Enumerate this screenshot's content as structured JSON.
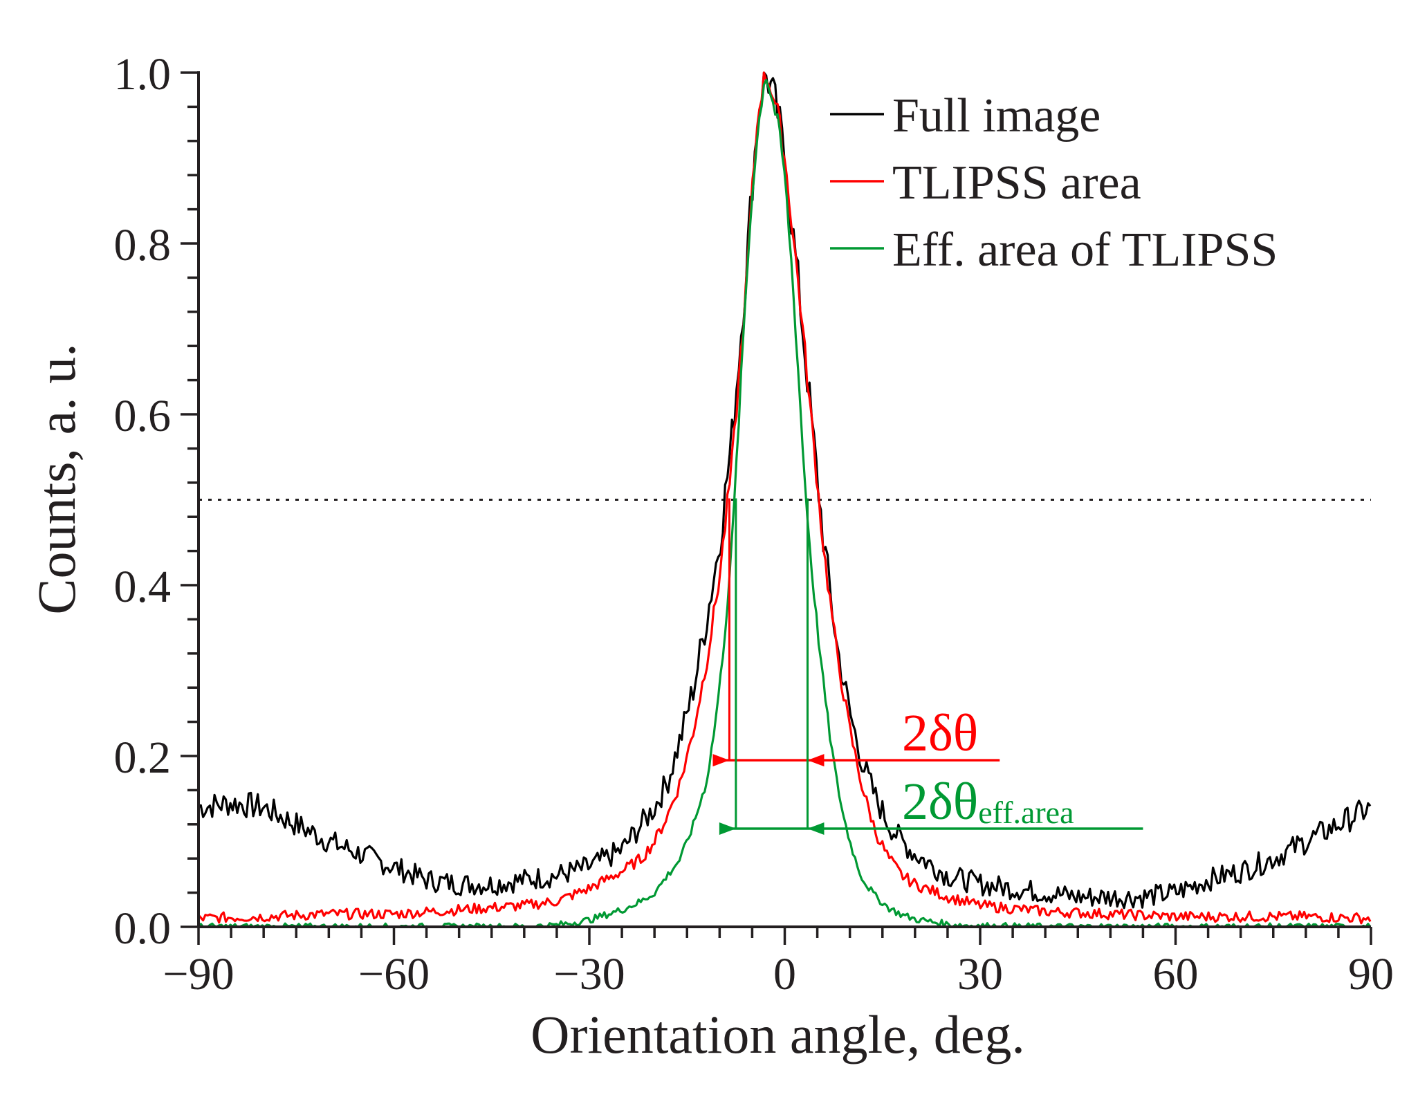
{
  "chart_data": {
    "type": "line",
    "xlabel": "Orientation angle, deg.",
    "ylabel": "Counts, a. u.",
    "xlim": [
      -90,
      90
    ],
    "ylim": [
      0,
      1.0
    ],
    "xticks": [
      -90,
      -60,
      -30,
      0,
      30,
      60,
      90
    ],
    "xtick_labels": [
      "−90",
      "−60",
      "−30",
      "0",
      "30",
      "60",
      "90"
    ],
    "yticks": [
      0.0,
      0.2,
      0.4,
      0.6,
      0.8,
      1.0
    ],
    "ytick_labels": [
      "0.0",
      "0.2",
      "0.4",
      "0.6",
      "0.8",
      "1.0"
    ],
    "legend_position": "top-right",
    "series": [
      {
        "name": "Full image",
        "color": "#000000",
        "x": [
          -90,
          -85,
          -80,
          -75,
          -70,
          -65,
          -60,
          -55,
          -50,
          -45,
          -40,
          -35,
          -30,
          -25,
          -22,
          -20,
          -18,
          -16,
          -14,
          -12,
          -10,
          -8,
          -6,
          -5,
          -4,
          -3,
          -2,
          -1,
          0,
          2,
          4,
          6,
          8,
          10,
          12,
          14,
          16,
          18,
          20,
          25,
          30,
          35,
          40,
          45,
          50,
          55,
          60,
          65,
          70,
          75,
          80,
          85,
          90
        ],
        "y": [
          0.14,
          0.145,
          0.14,
          0.12,
          0.1,
          0.085,
          0.07,
          0.055,
          0.05,
          0.05,
          0.055,
          0.06,
          0.07,
          0.09,
          0.12,
          0.14,
          0.17,
          0.22,
          0.28,
          0.36,
          0.45,
          0.58,
          0.76,
          0.87,
          0.96,
          1.0,
          0.98,
          0.95,
          0.9,
          0.76,
          0.6,
          0.45,
          0.33,
          0.25,
          0.19,
          0.15,
          0.12,
          0.1,
          0.085,
          0.06,
          0.05,
          0.045,
          0.04,
          0.035,
          0.035,
          0.035,
          0.04,
          0.055,
          0.065,
          0.08,
          0.1,
          0.12,
          0.14
        ]
      },
      {
        "name": "TLIPSS area",
        "color": "#ff0000",
        "x": [
          -90,
          -80,
          -70,
          -60,
          -50,
          -40,
          -35,
          -30,
          -25,
          -22,
          -20,
          -18,
          -16,
          -14,
          -12,
          -10,
          -8,
          -6,
          -5,
          -4,
          -3,
          -2,
          -1,
          0,
          2,
          4,
          6,
          8,
          10,
          12,
          14,
          16,
          18,
          20,
          25,
          30,
          40,
          50,
          60,
          70,
          80,
          90
        ],
        "y": [
          0.01,
          0.012,
          0.015,
          0.015,
          0.02,
          0.025,
          0.03,
          0.045,
          0.065,
          0.08,
          0.1,
          0.13,
          0.17,
          0.23,
          0.31,
          0.41,
          0.55,
          0.74,
          0.86,
          0.96,
          1.0,
          0.98,
          0.95,
          0.9,
          0.76,
          0.6,
          0.44,
          0.32,
          0.23,
          0.16,
          0.11,
          0.08,
          0.06,
          0.05,
          0.035,
          0.025,
          0.018,
          0.015,
          0.012,
          0.012,
          0.012,
          0.01
        ]
      },
      {
        "name": "Eff. area of TLIPSS",
        "color": "#009933",
        "x": [
          -90,
          -60,
          -40,
          -35,
          -30,
          -25,
          -22,
          -20,
          -18,
          -16,
          -14,
          -12,
          -11,
          -10,
          -9,
          -8,
          -7,
          -6,
          -5,
          -4,
          -3,
          -2,
          -1,
          0,
          1,
          2,
          3,
          4,
          5,
          6,
          7,
          8,
          9,
          10,
          11,
          12,
          14,
          16,
          18,
          20,
          25,
          30,
          40,
          60,
          90
        ],
        "y": [
          0.0,
          0.0,
          0.0,
          0.002,
          0.008,
          0.02,
          0.03,
          0.04,
          0.06,
          0.08,
          0.12,
          0.17,
          0.22,
          0.28,
          0.36,
          0.46,
          0.6,
          0.74,
          0.86,
          0.94,
          1.0,
          0.97,
          0.94,
          0.88,
          0.78,
          0.66,
          0.53,
          0.43,
          0.35,
          0.28,
          0.22,
          0.17,
          0.13,
          0.1,
          0.075,
          0.055,
          0.035,
          0.022,
          0.014,
          0.009,
          0.003,
          0.001,
          0.0,
          0.0,
          0.0
        ]
      }
    ],
    "reference_line": {
      "y": 0.5,
      "style": "dotted"
    },
    "annotations": [
      {
        "label": "2δθ",
        "color": "#ff0000",
        "y": 0.195,
        "x_range": [
          -8.5,
          3.5
        ],
        "text_x": 18
      },
      {
        "label": "2δθ",
        "subscript": "eff.area",
        "color": "#009933",
        "y": 0.115,
        "x_range": [
          -7.5,
          3.5
        ],
        "text_x": 18
      }
    ]
  }
}
